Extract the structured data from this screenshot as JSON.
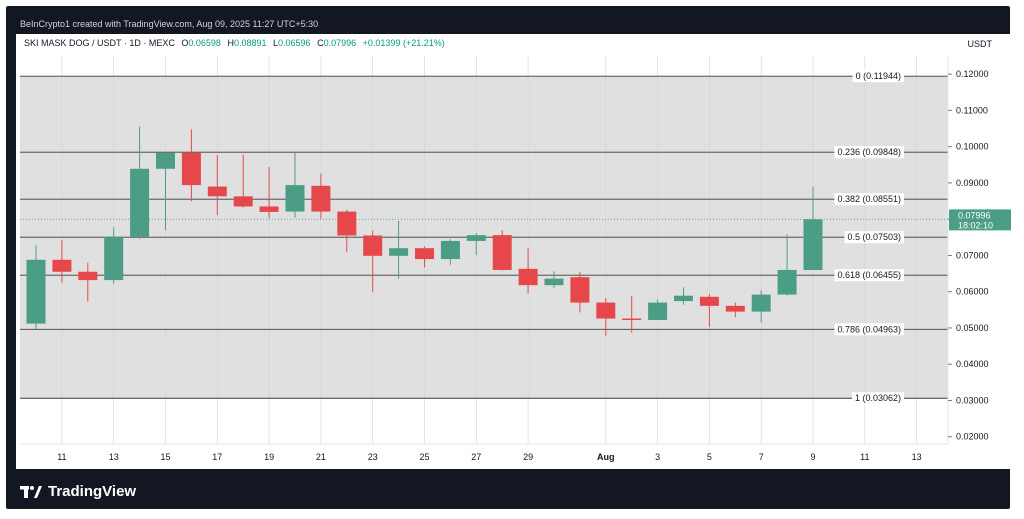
{
  "header": {
    "credit": "BeInCrypto1 created with TradingView.com, Aug 09, 2025 11:27 UTC+5:30"
  },
  "legend": {
    "symbol": "SKI MASK DOG / USDT · 1D · MEXC",
    "open_label": "O",
    "open": "0.06598",
    "high_label": "H",
    "high": "0.08891",
    "low_label": "L",
    "low": "0.06596",
    "close_label": "C",
    "close": "0.07996",
    "change": "+0.01399 (+21.21%)"
  },
  "price_unit": "USDT",
  "footer": {
    "brand": "TradingView"
  },
  "colors": {
    "up": "#4c9d86",
    "down": "#e5474b",
    "fib_band": "#e0e0e0",
    "fib_line": "#3a3a3a",
    "price_line": "#4c9d86"
  },
  "chart_data": {
    "type": "candlestick",
    "ylim": [
      0.018,
      0.125
    ],
    "y_ticks": [
      "0.12000",
      "0.11000",
      "0.10000",
      "0.09000",
      "0.08000",
      "0.07000",
      "0.06000",
      "0.05000",
      "0.04000",
      "0.03000",
      "0.02000"
    ],
    "y_tick_values": [
      0.12,
      0.11,
      0.1,
      0.09,
      0.08,
      0.07,
      0.06,
      0.05,
      0.04,
      0.03,
      0.02
    ],
    "x_ticks": [
      {
        "label": "11",
        "index": 1
      },
      {
        "label": "13",
        "index": 3
      },
      {
        "label": "15",
        "index": 5
      },
      {
        "label": "17",
        "index": 7
      },
      {
        "label": "19",
        "index": 9
      },
      {
        "label": "21",
        "index": 11
      },
      {
        "label": "23",
        "index": 13
      },
      {
        "label": "25",
        "index": 15
      },
      {
        "label": "27",
        "index": 17
      },
      {
        "label": "29",
        "index": 19
      },
      {
        "label": "Aug",
        "index": 22
      },
      {
        "label": "3",
        "index": 24
      },
      {
        "label": "5",
        "index": 26
      },
      {
        "label": "7",
        "index": 28
      },
      {
        "label": "9",
        "index": 30
      },
      {
        "label": "11",
        "index": 32
      },
      {
        "label": "13",
        "index": 34
      }
    ],
    "candles": [
      {
        "o": 0.0512,
        "h": 0.0728,
        "l": 0.0497,
        "c": 0.0688
      },
      {
        "o": 0.0688,
        "h": 0.0742,
        "l": 0.0625,
        "c": 0.0655
      },
      {
        "o": 0.0655,
        "h": 0.068,
        "l": 0.0573,
        "c": 0.0632
      },
      {
        "o": 0.0632,
        "h": 0.0778,
        "l": 0.0622,
        "c": 0.0752
      },
      {
        "o": 0.0752,
        "h": 0.1055,
        "l": 0.0745,
        "c": 0.0939
      },
      {
        "o": 0.0939,
        "h": 0.0985,
        "l": 0.0769,
        "c": 0.0983
      },
      {
        "o": 0.0983,
        "h": 0.1048,
        "l": 0.085,
        "c": 0.0894
      },
      {
        "o": 0.089,
        "h": 0.0977,
        "l": 0.0811,
        "c": 0.0863
      },
      {
        "o": 0.0863,
        "h": 0.0978,
        "l": 0.0832,
        "c": 0.0835
      },
      {
        "o": 0.0835,
        "h": 0.0944,
        "l": 0.0803,
        "c": 0.082
      },
      {
        "o": 0.0821,
        "h": 0.0983,
        "l": 0.0804,
        "c": 0.0894
      },
      {
        "o": 0.0892,
        "h": 0.0926,
        "l": 0.0802,
        "c": 0.0821
      },
      {
        "o": 0.0821,
        "h": 0.0826,
        "l": 0.071,
        "c": 0.0755
      },
      {
        "o": 0.0755,
        "h": 0.0768,
        "l": 0.06,
        "c": 0.0699
      },
      {
        "o": 0.0699,
        "h": 0.0795,
        "l": 0.0636,
        "c": 0.072
      },
      {
        "o": 0.072,
        "h": 0.0725,
        "l": 0.0667,
        "c": 0.069
      },
      {
        "o": 0.069,
        "h": 0.0745,
        "l": 0.0674,
        "c": 0.074
      },
      {
        "o": 0.074,
        "h": 0.0762,
        "l": 0.0701,
        "c": 0.0756
      },
      {
        "o": 0.0756,
        "h": 0.077,
        "l": 0.0658,
        "c": 0.066
      },
      {
        "o": 0.0663,
        "h": 0.072,
        "l": 0.0595,
        "c": 0.0618
      },
      {
        "o": 0.0618,
        "h": 0.0656,
        "l": 0.061,
        "c": 0.0636
      },
      {
        "o": 0.064,
        "h": 0.0655,
        "l": 0.0543,
        "c": 0.057
      },
      {
        "o": 0.057,
        "h": 0.0582,
        "l": 0.0478,
        "c": 0.0526
      },
      {
        "o": 0.0526,
        "h": 0.0588,
        "l": 0.0487,
        "c": 0.0522
      },
      {
        "o": 0.0522,
        "h": 0.0578,
        "l": 0.0522,
        "c": 0.057
      },
      {
        "o": 0.0574,
        "h": 0.0612,
        "l": 0.0564,
        "c": 0.0589
      },
      {
        "o": 0.0586,
        "h": 0.0593,
        "l": 0.0502,
        "c": 0.0561
      },
      {
        "o": 0.0561,
        "h": 0.057,
        "l": 0.053,
        "c": 0.0545
      },
      {
        "o": 0.0545,
        "h": 0.0604,
        "l": 0.0515,
        "c": 0.0592
      },
      {
        "o": 0.0592,
        "h": 0.0758,
        "l": 0.059,
        "c": 0.066
      },
      {
        "o": 0.06598,
        "h": 0.08891,
        "l": 0.06596,
        "c": 0.07996
      }
    ],
    "fib_levels": [
      {
        "label": "0 (0.11944)",
        "value": 0.11944
      },
      {
        "label": "0.236 (0.09848)",
        "value": 0.09848
      },
      {
        "label": "0.382 (0.08551)",
        "value": 0.08551
      },
      {
        "label": "0.5 (0.07503)",
        "value": 0.07503
      },
      {
        "label": "0.618 (0.06455)",
        "value": 0.06455
      },
      {
        "label": "0.786 (0.04963)",
        "value": 0.04963
      },
      {
        "label": "1 (0.03062)",
        "value": 0.03062
      }
    ],
    "last_price": {
      "label": "0.07996",
      "countdown": "18:02:10",
      "value": 0.07996
    }
  }
}
